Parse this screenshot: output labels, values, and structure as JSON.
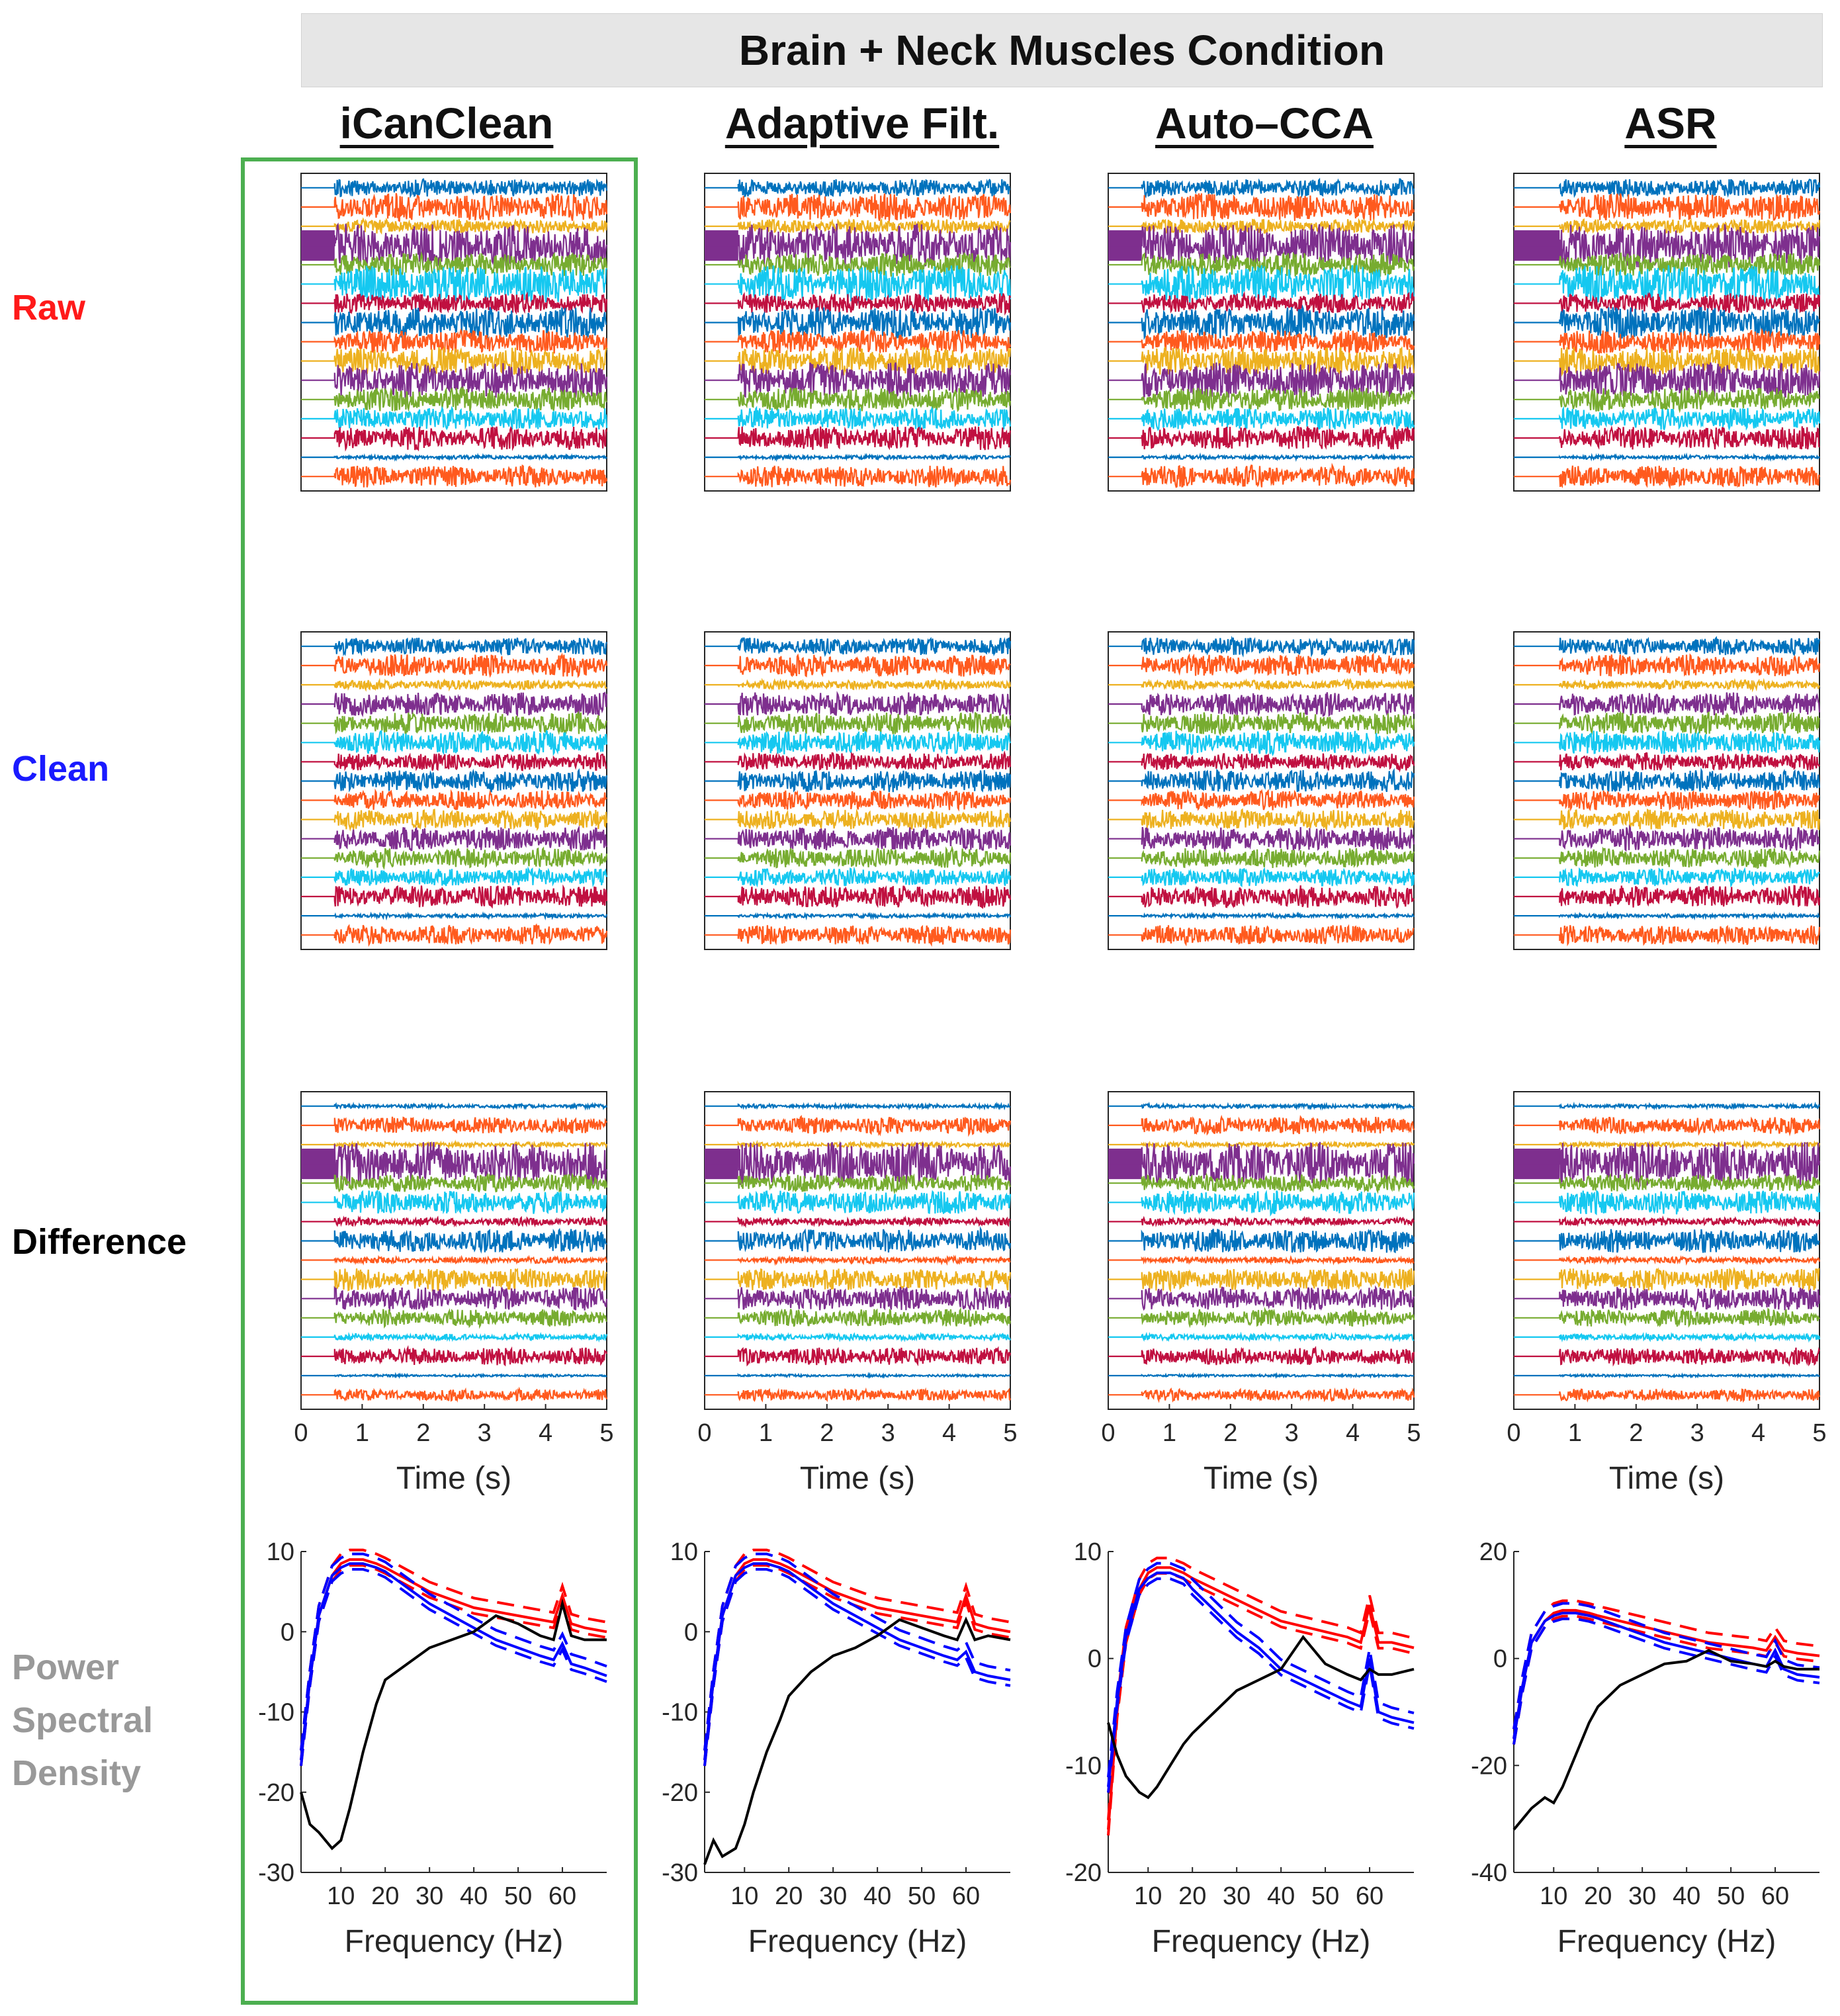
{
  "figure": {
    "banner_title": "Brain + Neck Muscles Condition",
    "methods": [
      "iCanClean",
      "Adaptive Filt.",
      "Auto–CCA",
      "ASR"
    ],
    "highlighted_method": "iCanClean",
    "highlight_color": "#4caf50",
    "rows": [
      {
        "label": "Raw",
        "color": "#ff1a1a"
      },
      {
        "label": "Clean",
        "color": "#1a1aff"
      },
      {
        "label": "Difference",
        "color": "#000000"
      },
      {
        "label": "Power",
        "label2": "Spectral",
        "label3": "Density",
        "color": "#999999"
      }
    ]
  },
  "chart_data": [
    {
      "type": "line",
      "panel": "eeg-timeseries",
      "description_rows": [
        "Raw",
        "Clean",
        "Difference"
      ],
      "xlabel": "Time (s)",
      "xlim": [
        0,
        5
      ],
      "xticks": [
        0,
        1,
        2,
        3,
        4,
        5
      ],
      "channel_count": 16,
      "channel_colors": [
        "#0072bd",
        "#ff5a1e",
        "#edb120",
        "#7e2f8e",
        "#77ac30",
        "#15c8f0",
        "#c01040",
        "#0072bd",
        "#ff5a1e",
        "#edb120",
        "#7e2f8e",
        "#77ac30",
        "#15c8f0",
        "#c01040",
        "#0072bd",
        "#ff5a1e"
      ],
      "onset_s": [
        0.55,
        0.55,
        0.55,
        0.75
      ],
      "amplitude_by_row": {
        "Raw": [
          0.22,
          0.35,
          0.18,
          0.55,
          0.3,
          0.48,
          0.25,
          0.4,
          0.3,
          0.35,
          0.45,
          0.3,
          0.28,
          0.3,
          0.05,
          0.28
        ],
        "Clean": [
          0.22,
          0.28,
          0.12,
          0.3,
          0.28,
          0.3,
          0.22,
          0.28,
          0.25,
          0.25,
          0.3,
          0.25,
          0.22,
          0.28,
          0.05,
          0.25
        ],
        "Difference": [
          0.05,
          0.22,
          0.06,
          0.55,
          0.22,
          0.3,
          0.1,
          0.3,
          0.08,
          0.28,
          0.3,
          0.22,
          0.08,
          0.22,
          0.03,
          0.15
        ]
      }
    },
    {
      "type": "line",
      "panel": "psd",
      "method": "iCanClean",
      "xlabel": "Frequency (Hz)",
      "xlim": [
        1,
        70
      ],
      "ylim": [
        -30,
        10
      ],
      "xticks": [
        10,
        20,
        30,
        40,
        50,
        60
      ],
      "yticks": [
        10,
        0,
        -10,
        -20,
        -30
      ],
      "x": [
        1,
        3,
        5,
        8,
        10,
        12,
        15,
        18,
        20,
        25,
        30,
        35,
        40,
        45,
        50,
        55,
        58,
        60,
        62,
        65,
        70
      ],
      "series": [
        {
          "name": "Raw",
          "color": "#ff0000",
          "values": [
            -16,
            -6,
            2,
            7,
            8.5,
            9,
            9,
            8.5,
            8,
            6.5,
            5,
            4,
            3,
            2.5,
            2,
            1.5,
            1.2,
            4.5,
            1,
            0.5,
            0
          ]
        },
        {
          "name": "Clean",
          "color": "#0000ff",
          "values": [
            -16,
            -6,
            2,
            7,
            8,
            8.5,
            8.5,
            8,
            7.5,
            5.5,
            3.5,
            2,
            0.5,
            -1,
            -2,
            -3,
            -3.5,
            -1.5,
            -4,
            -4.5,
            -5.5
          ]
        },
        {
          "name": "Difference",
          "color": "#000000",
          "values": [
            -20,
            -24,
            -25,
            -27,
            -26,
            -22,
            -15,
            -9,
            -6,
            -4,
            -2,
            -1,
            0,
            2,
            1,
            -0.5,
            -1,
            3.5,
            -0.5,
            -1,
            -1
          ]
        }
      ]
    },
    {
      "type": "line",
      "panel": "psd",
      "method": "Adaptive Filt.",
      "xlabel": "Frequency (Hz)",
      "xlim": [
        1,
        70
      ],
      "ylim": [
        -30,
        10
      ],
      "xticks": [
        10,
        20,
        30,
        40,
        50,
        60
      ],
      "yticks": [
        10,
        0,
        -10,
        -20,
        -30
      ],
      "x": [
        1,
        3,
        5,
        8,
        10,
        12,
        15,
        18,
        20,
        25,
        30,
        35,
        40,
        45,
        50,
        55,
        58,
        60,
        62,
        65,
        70
      ],
      "series": [
        {
          "name": "Raw",
          "color": "#ff0000",
          "values": [
            -16,
            -6,
            2,
            7,
            8.5,
            9,
            9,
            8.5,
            8,
            6.5,
            5,
            4,
            3,
            2.5,
            2,
            1.5,
            1.2,
            4.5,
            1,
            0.5,
            0
          ]
        },
        {
          "name": "Clean",
          "color": "#0000ff",
          "values": [
            -16,
            -6,
            2,
            7,
            8,
            8.5,
            8.5,
            8,
            7.5,
            5.5,
            3.5,
            2,
            0.5,
            -1,
            -2,
            -3,
            -3.5,
            -2.5,
            -5,
            -5.5,
            -6
          ]
        },
        {
          "name": "Difference",
          "color": "#000000",
          "values": [
            -29,
            -26,
            -28,
            -27,
            -24,
            -20,
            -15,
            -11,
            -8,
            -5,
            -3,
            -2,
            -0.5,
            1.5,
            0.5,
            -0.5,
            -1,
            1.5,
            -1,
            -0.5,
            -1
          ]
        }
      ]
    },
    {
      "type": "line",
      "panel": "psd",
      "method": "Auto–CCA",
      "xlabel": "Frequency (Hz)",
      "xlim": [
        1,
        70
      ],
      "ylim": [
        -20,
        10
      ],
      "xticks": [
        10,
        20,
        30,
        40,
        50,
        60
      ],
      "yticks": [
        10,
        0,
        -10,
        -20
      ],
      "x": [
        1,
        3,
        5,
        8,
        10,
        12,
        15,
        18,
        20,
        25,
        30,
        35,
        40,
        45,
        50,
        55,
        58,
        60,
        62,
        65,
        70
      ],
      "series": [
        {
          "name": "Raw",
          "color": "#ff0000",
          "values": [
            -16,
            -5,
            2,
            6.5,
            8,
            8.5,
            8.5,
            8,
            7.5,
            6.5,
            5.5,
            4.5,
            3.5,
            3,
            2.5,
            2,
            1.5,
            5,
            1.5,
            1.5,
            1
          ]
        },
        {
          "name": "Clean",
          "color": "#0000ff",
          "values": [
            -12,
            -4,
            2,
            6.5,
            7.5,
            8,
            8,
            7.5,
            6.5,
            4.5,
            2.5,
            1,
            -1,
            -2,
            -3,
            -4,
            -4.5,
            0,
            -5,
            -5.5,
            -6
          ]
        },
        {
          "name": "Difference",
          "color": "#000000",
          "values": [
            -6,
            -9,
            -11,
            -12.5,
            -13,
            -12,
            -10,
            -8,
            -7,
            -5,
            -3,
            -2,
            -1,
            2,
            -0.5,
            -1.5,
            -2,
            -1,
            -1.5,
            -1.5,
            -1
          ]
        }
      ]
    },
    {
      "type": "line",
      "panel": "psd",
      "method": "ASR",
      "xlabel": "Frequency (Hz)",
      "xlim": [
        1,
        70
      ],
      "ylim": [
        -40,
        20
      ],
      "xticks": [
        10,
        20,
        30,
        40,
        50,
        60
      ],
      "yticks": [
        20,
        0,
        -20,
        -40
      ],
      "x": [
        1,
        3,
        5,
        8,
        10,
        12,
        15,
        18,
        20,
        25,
        30,
        35,
        40,
        45,
        50,
        55,
        58,
        60,
        62,
        65,
        70
      ],
      "series": [
        {
          "name": "Raw",
          "color": "#ff0000",
          "values": [
            -15,
            -5,
            3,
            7,
            8.5,
            9,
            9,
            8.5,
            8,
            7,
            6,
            5,
            4,
            3,
            2.5,
            2,
            1.5,
            4,
            1.5,
            1,
            0.5
          ]
        },
        {
          "name": "Clean",
          "color": "#0000ff",
          "values": [
            -15,
            -5,
            3,
            7,
            8,
            8.5,
            8.5,
            8,
            7.5,
            6,
            4.5,
            3,
            2,
            1,
            0,
            -1,
            -1.5,
            1.5,
            -2,
            -3,
            -3.5
          ]
        },
        {
          "name": "Difference",
          "color": "#000000",
          "values": [
            -32,
            -30,
            -28,
            -26,
            -27,
            -24,
            -18,
            -12,
            -9,
            -5,
            -3,
            -1,
            -0.5,
            1.5,
            -0.5,
            -1,
            -1.5,
            -0.5,
            -1.5,
            -2,
            -2
          ]
        }
      ]
    }
  ]
}
